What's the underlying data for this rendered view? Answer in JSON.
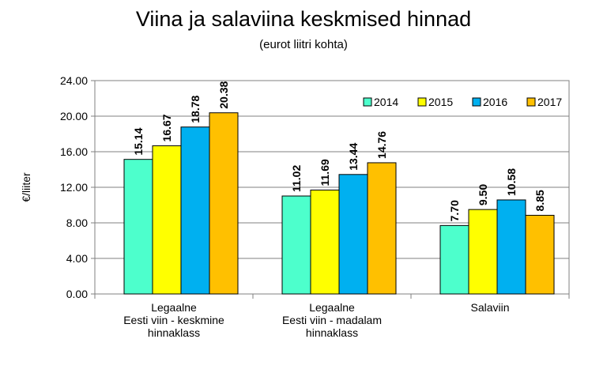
{
  "title": "Viina ja salaviina keskmised hinnad",
  "subtitle": "(eurot liitri kohta)",
  "chart_data": {
    "type": "bar",
    "title": "Viina ja salaviina keskmised hinnad",
    "subtitle": "(eurot liitri kohta)",
    "xlabel": "",
    "ylabel": "€/liiter",
    "ylim": [
      0,
      24
    ],
    "yticks": [
      "0.00",
      "4.00",
      "8.00",
      "12.00",
      "16.00",
      "20.00",
      "24.00"
    ],
    "grid": true,
    "legend_position": "top-right",
    "categories": [
      "Legaalne\nEesti viin - keskmine\nhinnaklass",
      "Legaalne\nEesti viin - madalam\nhinnaklass",
      "Salaviin"
    ],
    "series": [
      {
        "name": "2014",
        "color": "#4dffcc",
        "values": [
          15.14,
          11.02,
          7.7
        ],
        "labels": [
          "15.14",
          "11.02",
          "7.70"
        ]
      },
      {
        "name": "2015",
        "color": "#ffff00",
        "values": [
          16.67,
          11.69,
          9.5
        ],
        "labels": [
          "16.67",
          "11.69",
          "9.50"
        ]
      },
      {
        "name": "2016",
        "color": "#00b0f0",
        "values": [
          18.78,
          13.44,
          10.58
        ],
        "labels": [
          "18.78",
          "13.44",
          "10.58"
        ]
      },
      {
        "name": "2017",
        "color": "#ffc000",
        "values": [
          20.38,
          14.76,
          8.85
        ],
        "labels": [
          "20.38",
          "14.76",
          "8.85"
        ]
      }
    ]
  }
}
